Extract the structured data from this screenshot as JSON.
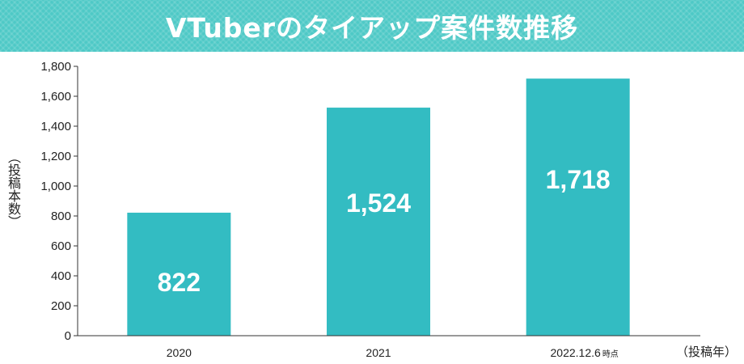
{
  "header": {
    "title": "VTuberのタイアップ案件数推移"
  },
  "chart_data": {
    "type": "bar",
    "title": "VTuberのタイアップ案件数推移",
    "categories": [
      "2020",
      "2021",
      "2022.12.6"
    ],
    "category_notes": [
      "",
      "",
      "時点"
    ],
    "values": [
      822,
      1524,
      1718
    ],
    "data_labels": [
      "822",
      "1,524",
      "1,718"
    ],
    "ylabel": "（投稿本数）",
    "xlabel": "（投稿年）",
    "ylim": [
      0,
      1800
    ],
    "yticks": [
      0,
      200,
      400,
      600,
      800,
      1000,
      1200,
      1400,
      1600,
      1800
    ],
    "ytick_labels": [
      "0",
      "200",
      "400",
      "600",
      "800",
      "1,000",
      "1,200",
      "1,400",
      "1,600",
      "1,800"
    ],
    "grid": false,
    "bar_color": "#33bcc2",
    "header_color": "#4ec9c6"
  }
}
